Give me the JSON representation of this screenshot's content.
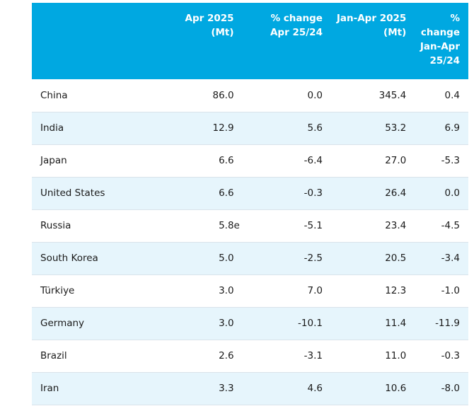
{
  "table": {
    "headers": {
      "country": "",
      "apr_2025": "Apr 2025\n(Mt)",
      "pct_change_apr": "% change\nApr 25/24",
      "jan_apr_2025": "Jan-Apr 2025\n(Mt)",
      "pct_change_jan_apr": "%\nchange\nJan-Apr\n25/24"
    },
    "rows": [
      {
        "country": "China",
        "apr_2025": "86.0",
        "flag": "",
        "pct_change_apr": "0.0",
        "jan_apr_2025": "345.4",
        "pct_change_jan_apr": "0.4"
      },
      {
        "country": "India",
        "apr_2025": "12.9",
        "flag": "",
        "pct_change_apr": "5.6",
        "jan_apr_2025": "53.2",
        "pct_change_jan_apr": "6.9"
      },
      {
        "country": "Japan",
        "apr_2025": "6.6",
        "flag": "",
        "pct_change_apr": "-6.4",
        "jan_apr_2025": "27.0",
        "pct_change_jan_apr": "-5.3"
      },
      {
        "country": "United States",
        "apr_2025": "6.6",
        "flag": "",
        "pct_change_apr": "-0.3",
        "jan_apr_2025": "26.4",
        "pct_change_jan_apr": "0.0"
      },
      {
        "country": "Russia",
        "apr_2025": "5.8",
        "flag": "e",
        "pct_change_apr": "-5.1",
        "jan_apr_2025": "23.4",
        "pct_change_jan_apr": "-4.5"
      },
      {
        "country": "South Korea",
        "apr_2025": "5.0",
        "flag": "",
        "pct_change_apr": "-2.5",
        "jan_apr_2025": "20.5",
        "pct_change_jan_apr": "-3.4"
      },
      {
        "country": "Türkiye",
        "apr_2025": "3.0",
        "flag": "",
        "pct_change_apr": "7.0",
        "jan_apr_2025": "12.3",
        "pct_change_jan_apr": "-1.0"
      },
      {
        "country": "Germany",
        "apr_2025": "3.0",
        "flag": "",
        "pct_change_apr": "-10.1",
        "jan_apr_2025": "11.4",
        "pct_change_jan_apr": "-11.9"
      },
      {
        "country": "Brazil",
        "apr_2025": "2.6",
        "flag": "",
        "pct_change_apr": "-3.1",
        "jan_apr_2025": "11.0",
        "pct_change_jan_apr": "-0.3"
      },
      {
        "country": "Iran",
        "apr_2025": "3.3",
        "flag": "",
        "pct_change_apr": "4.6",
        "jan_apr_2025": "10.6",
        "pct_change_jan_apr": "-8.0"
      }
    ]
  },
  "colors": {
    "header_bg": "#00a8e1",
    "header_text": "#ffffff",
    "alt_row_bg": "#e6f5fc",
    "row_border": "#d9e3ea"
  }
}
